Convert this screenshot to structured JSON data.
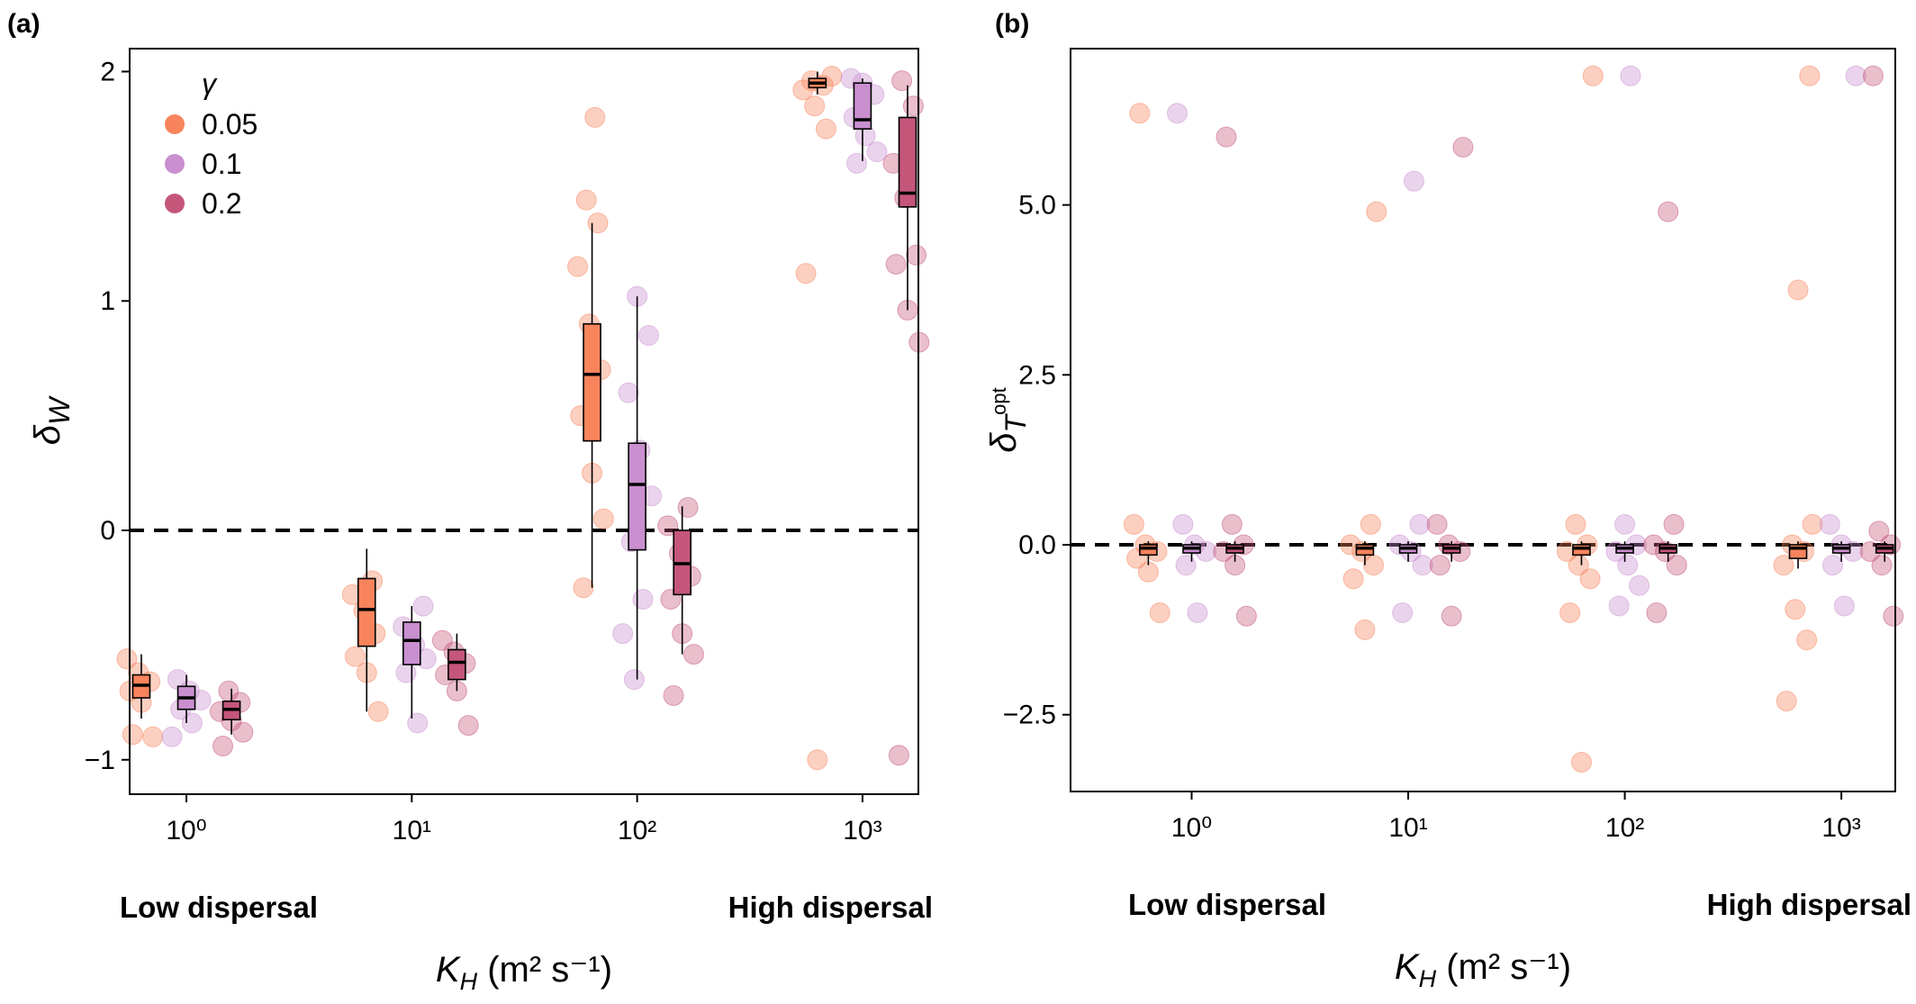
{
  "chart_data": [
    {
      "type": "box",
      "panel": "(a)",
      "y_label": {
        "text": "δ",
        "sub": "W"
      },
      "x_label": {
        "text": "K",
        "sub": "H",
        "rest": " (m² s⁻¹)"
      },
      "annotations": [
        "Low dispersal",
        "High dispersal"
      ],
      "x_log": true,
      "x": [
        1,
        10,
        100,
        1000
      ],
      "xlim": [
        0.56,
        1770
      ],
      "xticks": [
        {
          "value": 1,
          "label": "10⁰"
        },
        {
          "value": 10,
          "label": "10¹"
        },
        {
          "value": 100,
          "label": "10²"
        },
        {
          "value": 1000,
          "label": "10³"
        }
      ],
      "ylim": [
        -1.15,
        2.1
      ],
      "yticks": [
        {
          "value": -1,
          "label": "−1"
        },
        0,
        1,
        2
      ],
      "reference_line": 0,
      "legend_title": "γ",
      "legend": "top-left",
      "series": [
        {
          "name": "0.05",
          "color": "#f8845c",
          "boxes": [
            {
              "whisker_low": -0.82,
              "q1": -0.73,
              "median": -0.675,
              "q3": -0.63,
              "whisker_high": -0.54
            },
            {
              "whisker_low": -0.79,
              "q1": -0.505,
              "median": -0.345,
              "q3": -0.21,
              "whisker_high": -0.08
            },
            {
              "whisker_low": -0.25,
              "q1": 0.39,
              "median": 0.68,
              "q3": 0.9,
              "whisker_high": 1.34
            },
            {
              "whisker_low": 1.9,
              "q1": 1.93,
              "median": 1.95,
              "q3": 1.97,
              "whisker_high": 2.0
            }
          ],
          "points": [
            [
              -0.56,
              -0.62,
              -0.66,
              -0.7,
              -0.75,
              -0.9,
              -0.89
            ],
            [
              -0.22,
              -0.28,
              -0.35,
              -0.45,
              -0.55,
              -0.62,
              -0.79
            ],
            [
              1.44,
              1.34,
              1.15,
              0.9,
              0.7,
              0.5,
              0.25,
              0.05,
              -0.25,
              1.8
            ],
            [
              1.98,
              1.96,
              1.94,
              1.92,
              1.85,
              1.75,
              1.12,
              -1.0
            ]
          ]
        },
        {
          "name": "0.1",
          "color": "#c98fcf",
          "boxes": [
            {
              "whisker_low": -0.84,
              "q1": -0.78,
              "median": -0.73,
              "q3": -0.68,
              "whisker_high": -0.63
            },
            {
              "whisker_low": -0.82,
              "q1": -0.585,
              "median": -0.48,
              "q3": -0.4,
              "whisker_high": -0.33
            },
            {
              "whisker_low": -0.65,
              "q1": -0.085,
              "median": 0.2,
              "q3": 0.38,
              "whisker_high": 1.02
            },
            {
              "whisker_low": 1.61,
              "q1": 1.75,
              "median": 1.79,
              "q3": 1.95,
              "whisker_high": 1.97
            }
          ],
          "points": [
            [
              -0.65,
              -0.7,
              -0.74,
              -0.78,
              -0.84,
              -0.9
            ],
            [
              -0.33,
              -0.42,
              -0.5,
              -0.56,
              -0.62,
              -0.84
            ],
            [
              1.02,
              0.85,
              0.6,
              0.35,
              0.15,
              -0.05,
              -0.3,
              -0.45,
              -0.65
            ],
            [
              1.97,
              1.95,
              1.9,
              1.8,
              1.72,
              1.65,
              1.6
            ]
          ]
        },
        {
          "name": "0.2",
          "color": "#c4567a",
          "boxes": [
            {
              "whisker_low": -0.89,
              "q1": -0.825,
              "median": -0.78,
              "q3": -0.745,
              "whisker_high": -0.69
            },
            {
              "whisker_low": -0.7,
              "q1": -0.65,
              "median": -0.575,
              "q3": -0.52,
              "whisker_high": -0.45
            },
            {
              "whisker_low": -0.54,
              "q1": -0.28,
              "median": -0.145,
              "q3": 0.0,
              "whisker_high": 0.105
            },
            {
              "whisker_low": 0.96,
              "q1": 1.41,
              "median": 1.47,
              "q3": 1.8,
              "whisker_high": 1.94
            }
          ],
          "points": [
            [
              -0.7,
              -0.75,
              -0.79,
              -0.83,
              -0.88,
              -0.94
            ],
            [
              -0.48,
              -0.53,
              -0.58,
              -0.63,
              -0.7,
              -0.85
            ],
            [
              0.1,
              0.02,
              -0.1,
              -0.2,
              -0.3,
              -0.45,
              -0.54,
              -0.72
            ],
            [
              1.96,
              1.85,
              1.6,
              1.45,
              1.2,
              1.16,
              0.96,
              0.82,
              -0.98
            ]
          ]
        }
      ]
    },
    {
      "type": "box",
      "panel": "(b)",
      "y_label": {
        "text": "δ",
        "sub": "T",
        "subsup": "opt"
      },
      "x_label": {
        "text": "K",
        "sub": "H",
        "rest": " (m² s⁻¹)"
      },
      "annotations": [
        "Low dispersal",
        "High dispersal"
      ],
      "x_log": true,
      "x": [
        1,
        10,
        100,
        1000
      ],
      "xlim": [
        0.276,
        1774
      ],
      "xticks": [
        {
          "value": 1,
          "label": "10⁰"
        },
        {
          "value": 10,
          "label": "10¹"
        },
        {
          "value": 100,
          "label": "10²"
        },
        {
          "value": 1000,
          "label": "10³"
        }
      ],
      "ylim": [
        -3.63,
        7.3
      ],
      "yticks": [
        {
          "value": -2.5,
          "label": "−2.5"
        },
        {
          "value": 0,
          "label": "0.0"
        },
        2.5,
        {
          "value": 5,
          "label": "5.0"
        }
      ],
      "reference_line": 0,
      "series": [
        {
          "color": "#f8845c",
          "boxes": [
            {
              "whisker_low": -0.3,
              "q1": -0.15,
              "median": -0.05,
              "q3": 0.0,
              "whisker_high": 0.05
            },
            {
              "whisker_low": -0.3,
              "q1": -0.15,
              "median": -0.05,
              "q3": 0.0,
              "whisker_high": 0.05
            },
            {
              "whisker_low": -0.3,
              "q1": -0.15,
              "median": -0.05,
              "q3": 0.0,
              "whisker_high": 0.05
            },
            {
              "whisker_low": -0.35,
              "q1": -0.2,
              "median": -0.05,
              "q3": 0.0,
              "whisker_high": 0.05
            }
          ],
          "points": [
            [
              0.3,
              0.0,
              -0.1,
              -0.2,
              -0.4,
              -1.0,
              6.35
            ],
            [
              0.3,
              0.0,
              -0.1,
              -0.3,
              -0.5,
              -1.25,
              4.9
            ],
            [
              0.3,
              0.0,
              -0.1,
              -0.3,
              -0.5,
              -1.0,
              -3.2,
              6.9
            ],
            [
              0.3,
              0.0,
              -0.1,
              -0.3,
              -0.95,
              -1.4,
              -2.3,
              3.75,
              6.9
            ]
          ]
        },
        {
          "color": "#c98fcf",
          "boxes": [
            {
              "whisker_low": -0.25,
              "q1": -0.12,
              "median": -0.05,
              "q3": 0.0,
              "whisker_high": 0.05
            },
            {
              "whisker_low": -0.25,
              "q1": -0.12,
              "median": -0.05,
              "q3": 0.0,
              "whisker_high": 0.05
            },
            {
              "whisker_low": -0.25,
              "q1": -0.12,
              "median": -0.05,
              "q3": 0.0,
              "whisker_high": 0.05
            },
            {
              "whisker_low": -0.25,
              "q1": -0.12,
              "median": -0.05,
              "q3": 0.0,
              "whisker_high": 0.05
            }
          ],
          "points": [
            [
              0.3,
              0.0,
              -0.1,
              -0.3,
              -1.0,
              6.35
            ],
            [
              0.3,
              0.0,
              -0.1,
              -0.3,
              -1.0,
              5.35
            ],
            [
              0.3,
              0.0,
              -0.1,
              -0.3,
              -0.6,
              -0.9,
              6.9
            ],
            [
              0.3,
              0.0,
              -0.1,
              -0.3,
              -0.9,
              6.9
            ]
          ]
        },
        {
          "color": "#c4567a",
          "boxes": [
            {
              "whisker_low": -0.25,
              "q1": -0.12,
              "median": -0.05,
              "q3": 0.0,
              "whisker_high": 0.05
            },
            {
              "whisker_low": -0.25,
              "q1": -0.12,
              "median": -0.05,
              "q3": 0.0,
              "whisker_high": 0.05
            },
            {
              "whisker_low": -0.25,
              "q1": -0.12,
              "median": -0.05,
              "q3": 0.0,
              "whisker_high": 0.05
            },
            {
              "whisker_low": -0.25,
              "q1": -0.12,
              "median": -0.05,
              "q3": 0.0,
              "whisker_high": 0.05
            }
          ],
          "points": [
            [
              0.3,
              0.0,
              -0.1,
              -0.3,
              -1.05,
              6.0
            ],
            [
              0.3,
              0.0,
              -0.1,
              -0.3,
              -1.05,
              5.85
            ],
            [
              0.3,
              0.0,
              -0.1,
              -0.3,
              -1.0,
              4.9
            ],
            [
              0.2,
              0.0,
              -0.1,
              -0.3,
              -1.05,
              6.9
            ]
          ]
        }
      ]
    }
  ]
}
